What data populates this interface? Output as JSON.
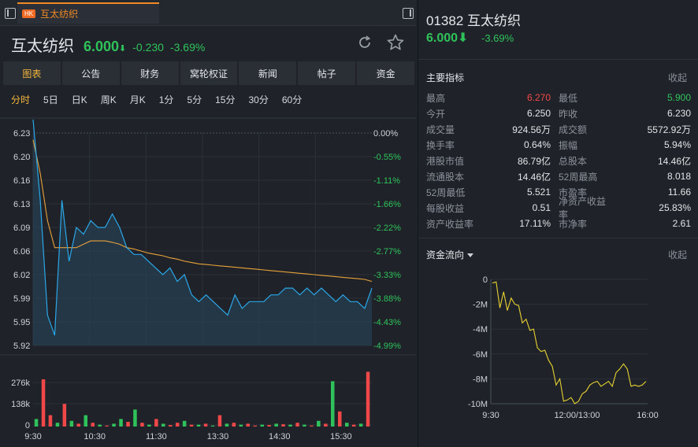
{
  "tab": {
    "badge": "HK",
    "title": "互太纺织"
  },
  "header": {
    "name": "互太纺织",
    "price": "6.000",
    "change": "-0.230",
    "change_pct": "-3.69%",
    "down_arrow": "⬇"
  },
  "menu": [
    {
      "label": "图表",
      "active": true
    },
    {
      "label": "公告"
    },
    {
      "label": "财务"
    },
    {
      "label": "窝轮权证"
    },
    {
      "label": "新闻"
    },
    {
      "label": "帖子"
    },
    {
      "label": "资金"
    }
  ],
  "periods": [
    {
      "label": "分时",
      "active": true
    },
    {
      "label": "5日"
    },
    {
      "label": "日K"
    },
    {
      "label": "周K"
    },
    {
      "label": "月K"
    },
    {
      "label": "1分"
    },
    {
      "label": "5分"
    },
    {
      "label": "15分"
    },
    {
      "label": "30分"
    },
    {
      "label": "60分"
    }
  ],
  "right": {
    "code_name": "01382 互太纺织",
    "price": "6.000⬇",
    "change_pct": "-3.69%",
    "metrics_title": "主要指标",
    "collapse_label": "收起",
    "metrics": [
      [
        "最高",
        "6.270",
        "最低",
        "5.900"
      ],
      [
        "今开",
        "6.250",
        "昨收",
        "6.230"
      ],
      [
        "成交量",
        "924.56万",
        "成交额",
        "5572.92万"
      ],
      [
        "换手率",
        "0.64%",
        "振幅",
        "5.94%"
      ],
      [
        "港股市值",
        "86.79亿",
        "总股本",
        "14.46亿"
      ],
      [
        "流通股本",
        "14.46亿",
        "52周最高",
        "8.018"
      ],
      [
        "52周最低",
        "5.521",
        "市盈率",
        "11.66"
      ],
      [
        "每股收益",
        "0.51",
        "净资产收益率",
        "25.83%"
      ],
      [
        "资产收益率",
        "17.11%",
        "市净率",
        "2.61"
      ]
    ],
    "flow_title": "资金流向",
    "flow_collapse": "收起"
  },
  "colors": {
    "up": "#f04848",
    "down": "#2fc25b",
    "accent": "#f5b73b",
    "price_line": "#2aa7e8",
    "avg_line": "#e8a23a"
  },
  "chart_data": [
    {
      "type": "line",
      "title": "",
      "y_labels": [
        "6.23",
        "6.20",
        "6.16",
        "6.13",
        "6.09",
        "6.06",
        "6.02",
        "5.99",
        "5.95",
        "5.92"
      ],
      "y_pct_labels": [
        "0.00%",
        "-0.55%",
        "-1.11%",
        "-1.66%",
        "-2.22%",
        "-2.77%",
        "-3.33%",
        "-3.88%",
        "-4.43%",
        "-4.99%"
      ],
      "x_labels": [
        "9:30",
        "10:30",
        "11:30",
        "13:30",
        "14:30",
        "15:30"
      ],
      "ylim": [
        5.915,
        6.23
      ],
      "prev_close": 6.23,
      "series": [
        {
          "values": [
            6.25,
            6.13,
            5.96,
            5.93,
            6.13,
            6.04,
            6.09,
            6.08,
            6.1,
            6.09,
            6.09,
            6.11,
            6.09,
            6.06,
            6.05,
            6.05,
            6.04,
            6.03,
            6.02,
            6.03,
            6.01,
            6.02,
            5.99,
            5.98,
            5.99,
            5.98,
            5.97,
            5.96,
            5.99,
            5.97,
            5.98,
            5.98,
            5.98,
            5.99,
            5.99,
            6.0,
            6.0,
            5.99,
            6.0,
            5.99,
            6.0,
            5.99,
            5.98,
            5.99,
            5.98,
            5.98,
            5.97,
            6.0
          ]
        },
        {
          "values": [
            6.22,
            6.17,
            6.1,
            6.06,
            6.06,
            6.06,
            6.06,
            6.065,
            6.07,
            6.07,
            6.07,
            6.068,
            6.065,
            6.06,
            6.058,
            6.055,
            6.052,
            6.05,
            6.048,
            6.045,
            6.043,
            6.04,
            6.038,
            6.036,
            6.035,
            6.034,
            6.033,
            6.032,
            6.031,
            6.03,
            6.029,
            6.028,
            6.027,
            6.026,
            6.025,
            6.024,
            6.023,
            6.022,
            6.021,
            6.02,
            6.019,
            6.018,
            6.017,
            6.016,
            6.015,
            6.014,
            6.013,
            6.01
          ]
        }
      ]
    },
    {
      "type": "bar",
      "title": "",
      "y_labels": [
        "276k",
        "138k",
        "0"
      ],
      "ylim": [
        0,
        300000
      ],
      "values": [
        40000,
        250000,
        60000,
        20000,
        120000,
        30000,
        15000,
        60000,
        20000,
        10000,
        5000,
        15000,
        40000,
        25000,
        90000,
        20000,
        10000,
        40000,
        15000,
        8000,
        20000,
        30000,
        10000,
        10000,
        15000,
        5000,
        60000,
        15000,
        20000,
        10000,
        15000,
        5000,
        10000,
        8000,
        15000,
        12000,
        10000,
        20000,
        10000,
        5000,
        30000,
        15000,
        240000,
        80000,
        20000,
        10000,
        15000,
        290000
      ],
      "colors_up": [
        false,
        true,
        true,
        false,
        true,
        false,
        true,
        false,
        true,
        false,
        true,
        false,
        false,
        true,
        false,
        true,
        false,
        true,
        false,
        true,
        true,
        false,
        true,
        false,
        true,
        false,
        true,
        false,
        true,
        false,
        true,
        true,
        false,
        true,
        false,
        true,
        false,
        true,
        false,
        true,
        false,
        true,
        false,
        true,
        false,
        true,
        false,
        true
      ]
    },
    {
      "type": "line",
      "title": "",
      "y_labels": [
        "0",
        "-2M",
        "-4M",
        "-6M",
        "-8M",
        "-10M"
      ],
      "x_labels": [
        "9:30",
        "12:00/13:00",
        "16:00"
      ],
      "ylim": [
        -10000000,
        0
      ],
      "series": [
        {
          "values": [
            -0.3,
            -0.2,
            -2.3,
            -1.0,
            -2.5,
            -1.5,
            -2.0,
            -2.1,
            -3.5,
            -3.2,
            -4.1,
            -4.0,
            -5.5,
            -5.8,
            -5.7,
            -6.5,
            -7.0,
            -8.5,
            -8.0,
            -9.8,
            -9.7,
            -9.5,
            -10.0,
            -9.8,
            -9.2,
            -9.0,
            -8.5,
            -8.3,
            -8.2,
            -8.6,
            -8.4,
            -8.2,
            -8.6,
            -7.5,
            -7.2,
            -6.8,
            -7.2,
            -8.6,
            -8.5,
            -8.6,
            -8.5,
            -8.2
          ]
        }
      ]
    }
  ]
}
